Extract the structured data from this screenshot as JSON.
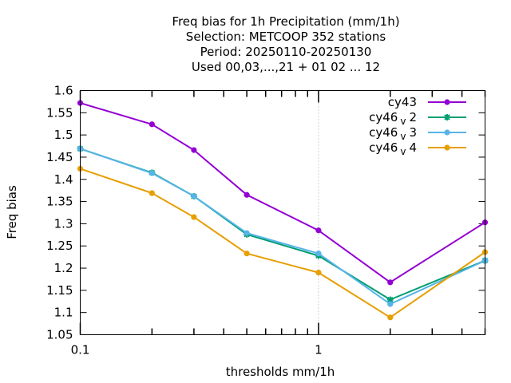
{
  "chart_data": {
    "type": "line",
    "title_lines": [
      "Freq bias  for 1h Precipitation (mm/1h)",
      "Selection: METCOOP    352 stations",
      "Period: 20250110-20250130",
      "Used  00,03,...,21  + 01 02 ... 12"
    ],
    "xlabel": "thresholds mm/1h",
    "ylabel": "Freq bias",
    "x_scale": "log",
    "xlim": [
      0.1,
      5
    ],
    "ylim": [
      1.05,
      1.6
    ],
    "x_tick_labels": [
      {
        "value": 0.1,
        "label": "0.1"
      },
      {
        "value": 1,
        "label": "1"
      }
    ],
    "y_ticks": [
      1.05,
      1.1,
      1.15,
      1.2,
      1.25,
      1.3,
      1.35,
      1.4,
      1.45,
      1.5,
      1.55,
      1.6
    ],
    "y_tick_labels": [
      "1.05",
      "1.1",
      "1.15",
      "1.2",
      "1.25",
      "1.3",
      "1.35",
      "1.4",
      "1.45",
      "1.5",
      "1.55",
      "1.6"
    ],
    "grid": true,
    "legend_position": "top-right",
    "x": [
      0.1,
      0.2,
      0.3,
      0.5,
      1,
      2,
      5
    ],
    "series": [
      {
        "name": "cy43",
        "name_main": "cy43",
        "name_sub": "",
        "name_tail": "",
        "color": "#9400d3",
        "marker": "circle",
        "values": [
          1.572,
          1.524,
          1.466,
          1.365,
          1.285,
          1.168,
          1.303
        ]
      },
      {
        "name": "cy46 v 2",
        "name_main": "cy46",
        "name_sub": "v",
        "name_tail": "2",
        "color": "#009e73",
        "marker": "star",
        "values": [
          1.469,
          1.415,
          1.362,
          1.276,
          1.228,
          1.129,
          1.217
        ]
      },
      {
        "name": "cy46 v 3",
        "name_main": "cy46",
        "name_sub": "v",
        "name_tail": "3",
        "color": "#56b4e9",
        "marker": "circle",
        "values": [
          1.469,
          1.414,
          1.362,
          1.279,
          1.233,
          1.119,
          1.217
        ]
      },
      {
        "name": "cy46 v 4",
        "name_main": "cy46",
        "name_sub": "v",
        "name_tail": "4",
        "color": "#e69f00",
        "marker": "circle",
        "values": [
          1.424,
          1.369,
          1.315,
          1.233,
          1.19,
          1.089,
          1.236
        ]
      }
    ]
  }
}
